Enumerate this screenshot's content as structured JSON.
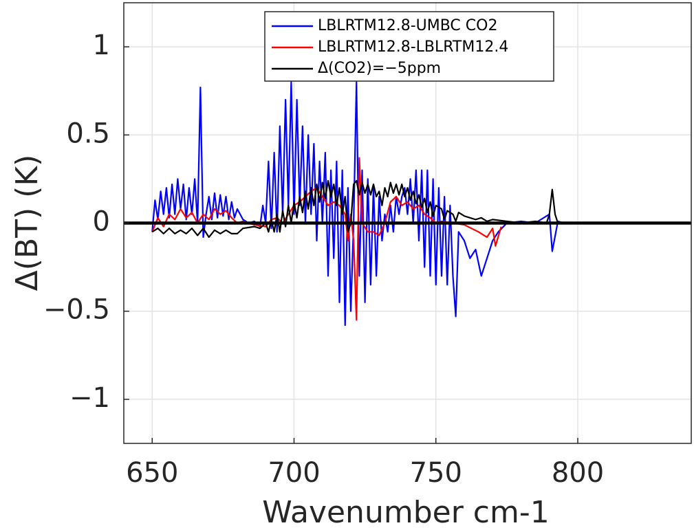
{
  "chart_data": {
    "type": "line",
    "xlabel": "Wavenumber cm-1",
    "ylabel": "Δ(BT) (K)",
    "xlim": [
      640,
      840
    ],
    "xticks": [
      650,
      700,
      750,
      800
    ],
    "ylim": [
      -1.25,
      1.25
    ],
    "yticks": [
      {
        "value": -1,
        "label": "−1"
      },
      {
        "value": -0.5,
        "label": "−0.5"
      },
      0,
      0.5,
      1
    ],
    "grid": true,
    "legend_loc": "upper center",
    "zero_line": 0,
    "series": [
      {
        "name": "LBLRTM12.8-UMBC CO2",
        "color": "#0000ff",
        "x": [
          650,
          651,
          652,
          653,
          654,
          655,
          656,
          657,
          658,
          659,
          660,
          661,
          662,
          663,
          664,
          665,
          666,
          667,
          668,
          669,
          670,
          671,
          672,
          673,
          674,
          675,
          676,
          677,
          678,
          679,
          680,
          682,
          684,
          686,
          688,
          689,
          690,
          691,
          692,
          693,
          694,
          695,
          696,
          697,
          698,
          699,
          700,
          701,
          702,
          703,
          704,
          705,
          706,
          707,
          708,
          709,
          710,
          711,
          712,
          713,
          714,
          715,
          716,
          717,
          718,
          719,
          720,
          721,
          722,
          723,
          724,
          725,
          726,
          727,
          728,
          729,
          730,
          731,
          732,
          733,
          734,
          735,
          736,
          737,
          738,
          739,
          740,
          741,
          742,
          743,
          744,
          745,
          746,
          747,
          748,
          749,
          750,
          751,
          752,
          753,
          754,
          755,
          756,
          757,
          758,
          760,
          762,
          764,
          766,
          768,
          770,
          772,
          775,
          780,
          785,
          790,
          791,
          793,
          795,
          800,
          805,
          810,
          815
        ],
        "values": [
          -0.05,
          0.13,
          0.02,
          0.18,
          0.05,
          0.2,
          0.03,
          0.22,
          0.05,
          0.25,
          0.08,
          0.22,
          0.02,
          0.2,
          0.05,
          0.25,
          0.0,
          0.77,
          -0.08,
          0.05,
          0.15,
          0.02,
          0.17,
          0.03,
          0.16,
          0.04,
          0.15,
          0.02,
          0.12,
          0.03,
          0.08,
          0.02,
          0.0,
          0.01,
          -0.02,
          0.1,
          0.0,
          0.35,
          -0.03,
          0.4,
          -0.05,
          0.55,
          0.05,
          0.7,
          0.1,
          0.8,
          0.05,
          0.7,
          0.1,
          0.55,
          0.0,
          0.5,
          0.05,
          0.45,
          -0.1,
          0.35,
          0.0,
          0.4,
          -0.3,
          0.3,
          -0.2,
          0.35,
          -0.45,
          0.3,
          -0.58,
          0.2,
          -0.5,
          0.0,
          0.8,
          -0.3,
          0.3,
          -0.45,
          0.25,
          -0.35,
          0.2,
          -0.3,
          0.15,
          -0.1,
          0.05,
          -0.05,
          0.1,
          -0.05,
          0.15,
          0.05,
          0.15,
          0.2,
          0.05,
          0.25,
          0.0,
          0.3,
          -0.1,
          0.3,
          -0.25,
          0.3,
          -0.3,
          0.25,
          -0.35,
          0.2,
          -0.3,
          0.15,
          -0.35,
          0.1,
          -0.3,
          -0.53,
          -0.05,
          -0.1,
          -0.2,
          -0.15,
          -0.3,
          -0.2,
          -0.1,
          -0.05,
          0.0,
          0.01,
          0.0,
          0.05,
          -0.16,
          0.01,
          0.0,
          0.0,
          0.0,
          0.0,
          0.0
        ]
      },
      {
        "name": "LBLRTM12.8-LBLRTM12.4",
        "color": "#ff0000",
        "x": [
          650,
          652,
          654,
          656,
          658,
          660,
          662,
          664,
          666,
          668,
          670,
          672,
          674,
          676,
          678,
          680,
          682,
          686,
          690,
          692,
          694,
          696,
          698,
          700,
          702,
          704,
          706,
          708,
          710,
          712,
          714,
          716,
          718,
          719,
          720,
          721,
          722,
          723,
          724,
          726,
          728,
          730,
          732,
          734,
          736,
          738,
          740,
          742,
          744,
          746,
          748,
          750,
          752,
          756,
          760,
          765,
          768,
          770,
          771,
          773
        ],
        "values": [
          -0.05,
          0.03,
          -0.02,
          0.05,
          0.02,
          0.08,
          0.03,
          0.06,
          0.0,
          0.05,
          0.02,
          0.08,
          0.05,
          0.07,
          0.03,
          0.0,
          0.01,
          -0.01,
          -0.02,
          0.02,
          0.03,
          0.0,
          0.05,
          0.1,
          0.12,
          0.15,
          0.18,
          0.2,
          0.15,
          0.1,
          0.12,
          0.1,
          0.05,
          -0.1,
          0.05,
          -0.1,
          -0.55,
          0.37,
          0.0,
          -0.05,
          -0.05,
          -0.07,
          0.0,
          0.12,
          0.15,
          0.1,
          0.12,
          0.08,
          0.1,
          0.05,
          0.03,
          0.0,
          0.01,
          0.0,
          -0.01,
          -0.05,
          -0.08,
          -0.03,
          -0.13,
          -0.02
        ]
      },
      {
        "name": "Δ(CO2)=−5ppm",
        "color": "#000000",
        "x": [
          650,
          652,
          654,
          656,
          658,
          660,
          662,
          664,
          666,
          668,
          670,
          672,
          674,
          676,
          678,
          680,
          682,
          686,
          688,
          690,
          691,
          692,
          693,
          694,
          695,
          696,
          697,
          698,
          699,
          700,
          701,
          702,
          703,
          704,
          705,
          706,
          707,
          708,
          709,
          710,
          711,
          712,
          713,
          714,
          715,
          716,
          717,
          718,
          719,
          720,
          721,
          722,
          723,
          724,
          725,
          726,
          727,
          728,
          729,
          730,
          731,
          732,
          733,
          734,
          735,
          736,
          737,
          738,
          739,
          740,
          741,
          742,
          743,
          744,
          745,
          746,
          747,
          748,
          749,
          750,
          752,
          753,
          754,
          756,
          757,
          758,
          760,
          762,
          764,
          766,
          768,
          770,
          775,
          780,
          785,
          789,
          790,
          791,
          792,
          793,
          800,
          810,
          817
        ],
        "values": [
          -0.05,
          -0.03,
          -0.06,
          -0.03,
          -0.06,
          -0.04,
          -0.06,
          -0.03,
          -0.07,
          -0.03,
          -0.08,
          -0.04,
          -0.06,
          -0.04,
          -0.06,
          -0.06,
          -0.03,
          -0.02,
          -0.03,
          0.0,
          -0.05,
          0.02,
          -0.05,
          0.05,
          -0.05,
          0.07,
          -0.02,
          0.1,
          0.0,
          0.12,
          0.03,
          0.15,
          0.06,
          0.18,
          0.08,
          0.2,
          0.1,
          0.22,
          0.12,
          0.23,
          0.14,
          0.24,
          0.15,
          0.22,
          0.1,
          0.2,
          0.05,
          0.15,
          -0.05,
          0.0,
          0.22,
          0.24,
          0.16,
          0.23,
          0.17,
          0.22,
          0.16,
          0.22,
          0.15,
          0.18,
          0.1,
          0.2,
          0.15,
          0.23,
          0.17,
          0.22,
          0.16,
          0.22,
          0.15,
          0.2,
          0.13,
          0.18,
          0.11,
          0.16,
          0.09,
          0.14,
          0.06,
          0.12,
          0.04,
          0.1,
          0.08,
          0.02,
          0.07,
          0.05,
          0.01,
          0.06,
          0.04,
          0.03,
          0.02,
          0.03,
          0.01,
          0.02,
          0.01,
          0.0,
          0.01,
          0.0,
          0.05,
          0.19,
          0.05,
          0.0,
          0.0,
          0.0,
          0.0
        ]
      }
    ]
  }
}
